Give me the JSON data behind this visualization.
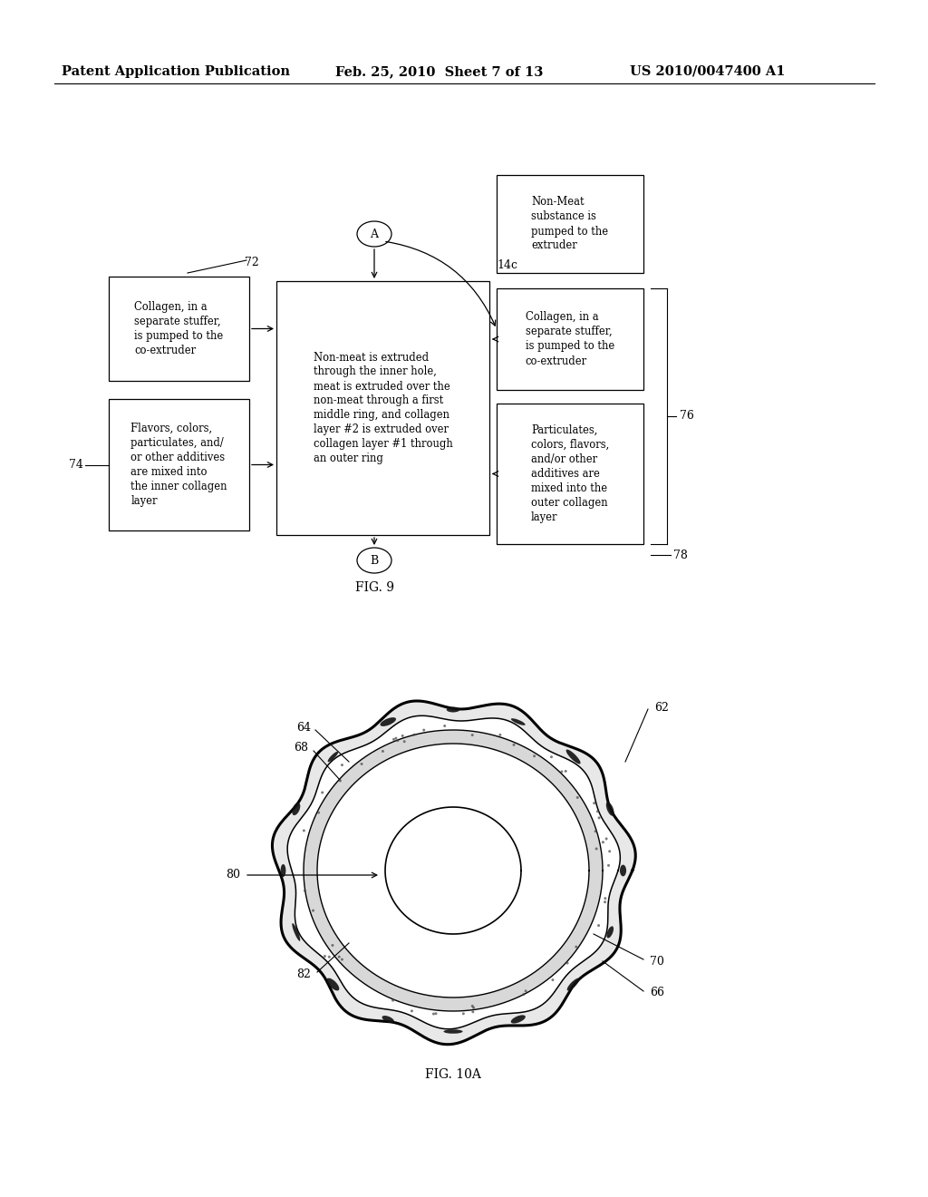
{
  "header_left": "Patent Application Publication",
  "header_center": "Feb. 25, 2010  Sheet 7 of 13",
  "header_right": "US 2010/0047400 A1",
  "fig9_label": "FIG. 9",
  "fig10a_label": "FIG. 10A",
  "box_center_text": "Non-meat is extruded\nthrough the inner hole,\nmeat is extruded over the\nnon-meat through a first\nmiddle ring, and collagen\nlayer #2 is extruded over\ncollagen layer #1 through\nan outer ring",
  "box_top_right_text": "Non-Meat\nsubstance is\npumped to the\nextruder",
  "box_mid_right_top_text": "Collagen, in a\nseparate stuffer,\nis pumped to the\nco-extruder",
  "box_mid_right_bot_text": "Particulates,\ncolors, flavors,\nand/or other\nadditives are\nmixed into the\nouter collagen\nlayer",
  "box_left_top_text": "Collagen, in a\nseparate stuffer,\nis pumped to the\nco-extruder",
  "box_left_bot_text": "Flavors, colors,\nparticulates, and/\nor other additives\nare mixed into\nthe inner collagen\nlayer",
  "label_72": "72",
  "label_74": "74",
  "label_76": "76",
  "label_78": "78",
  "label_14c": "14c",
  "label_A": "A",
  "label_B": "B",
  "label_62": "62",
  "label_64": "64",
  "label_66": "66",
  "label_68": "68",
  "label_70": "70",
  "label_80": "80",
  "label_82": "82",
  "bg_color": "#ffffff",
  "line_color": "#000000",
  "text_color": "#000000"
}
